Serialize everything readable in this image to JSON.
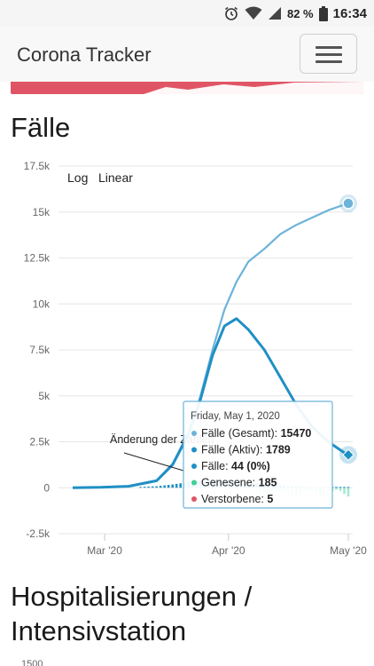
{
  "status_bar": {
    "battery": "82 %",
    "time": "16:34",
    "icons": [
      "alarm-icon",
      "wifi-icon",
      "signal-icon",
      "battery-icon"
    ]
  },
  "navbar": {
    "brand": "Corona Tracker",
    "menu_icon": "hamburger-icon"
  },
  "sections": {
    "cases_title": "Fälle",
    "hosp_title_line1": "Hospitalisierungen /",
    "hosp_title_line2": "Intensivstation",
    "hosp_first_tick": "1500"
  },
  "colors": {
    "total": "#6db3d9",
    "active": "#1f8fc4",
    "daily_new": "#1f8fc4",
    "recovered": "#3ccf98",
    "deaths": "#e05565",
    "redbar": "#e05565"
  },
  "chart_data": {
    "type": "line",
    "title": "",
    "xlabel": "",
    "ylabel": "",
    "ylim": [
      -2500,
      17500
    ],
    "yticks": [
      "17.5k",
      "15k",
      "12.5k",
      "10k",
      "7.5k",
      "5k",
      "2.5k",
      "0",
      "-2.5k"
    ],
    "xticks": [
      "Mar '20",
      "Apr '20",
      "May '20"
    ],
    "scale_buttons": [
      "Log",
      "Linear"
    ],
    "annotation": "Änderung der Zahlen",
    "x": [
      "2020-02-22",
      "2020-02-29",
      "2020-03-07",
      "2020-03-14",
      "2020-03-18",
      "2020-03-22",
      "2020-03-25",
      "2020-03-28",
      "2020-03-31",
      "2020-04-03",
      "2020-04-06",
      "2020-04-10",
      "2020-04-14",
      "2020-04-18",
      "2020-04-22",
      "2020-04-26",
      "2020-04-30",
      "2020-05-01"
    ],
    "series": [
      {
        "name": "Fälle (Gesamt)",
        "values": [
          0,
          20,
          80,
          400,
          1300,
          3000,
          5000,
          7500,
          9700,
          11200,
          12300,
          13000,
          13800,
          14300,
          14700,
          15100,
          15400,
          15470
        ]
      },
      {
        "name": "Fälle (Aktiv)",
        "values": [
          0,
          20,
          80,
          380,
          1250,
          2900,
          4800,
          7200,
          8800,
          9200,
          8600,
          7500,
          6000,
          4500,
          3300,
          2500,
          1900,
          1789
        ]
      },
      {
        "name": "Änderung der Zahlen",
        "values": [
          0,
          5,
          20,
          80,
          180,
          300,
          420,
          480,
          450,
          380,
          300,
          200,
          120,
          60,
          20,
          44,
          44,
          44
        ]
      }
    ],
    "tooltip": {
      "date": "Friday, May 1, 2020",
      "rows": [
        {
          "label": "Fälle (Gesamt): ",
          "value": "15470",
          "color": "#6db3d9"
        },
        {
          "label": "Fälle (Aktiv): ",
          "value": "1789",
          "color": "#1f8fc4"
        },
        {
          "label": "Fälle: ",
          "value": "44 (0%)",
          "color": "#1f8fc4"
        },
        {
          "label": "Genesene: ",
          "value": "185",
          "color": "#3ccf98"
        },
        {
          "label": "Verstorbene: ",
          "value": "5",
          "color": "#e05565"
        }
      ]
    }
  }
}
